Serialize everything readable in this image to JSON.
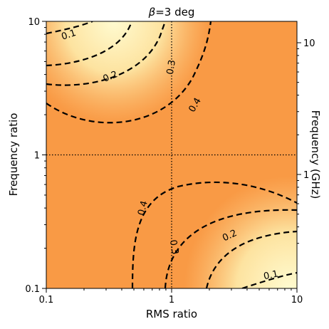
{
  "chart_data": {
    "type": "heatmap",
    "title_prefix": "β",
    "title_suffix": "=3 deg",
    "xlabel": "RMS ratio",
    "ylabel": "Frequency ratio",
    "y2label": "Frequency (GHz)",
    "xscale": "log",
    "yscale": "log",
    "xlim": [
      0.1,
      10
    ],
    "ylim": [
      0.1,
      10
    ],
    "x_ticks": [
      {
        "value": 0.1,
        "label": "0.1"
      },
      {
        "value": 1,
        "label": "1"
      },
      {
        "value": 10,
        "label": "10"
      }
    ],
    "y_ticks": [
      {
        "value": 0.1,
        "label": "0.1"
      },
      {
        "value": 1,
        "label": "1"
      },
      {
        "value": 10,
        "label": "10"
      }
    ],
    "y2_ticks": [
      {
        "value": 1,
        "label": "1"
      },
      {
        "value": 10,
        "label": "10"
      }
    ],
    "reference_lines": {
      "x": 1,
      "y": 1,
      "style": "dotted"
    },
    "colormap": {
      "low": "#fffbd0",
      "mid": "#fde3a0",
      "high": "#f99a45"
    },
    "contours": [
      {
        "level": 0.1,
        "label": "0.1"
      },
      {
        "level": 0.2,
        "label": "0.2"
      },
      {
        "level": 0.3,
        "label": "0.3"
      },
      {
        "level": 0.4,
        "label": "0.4"
      }
    ]
  }
}
